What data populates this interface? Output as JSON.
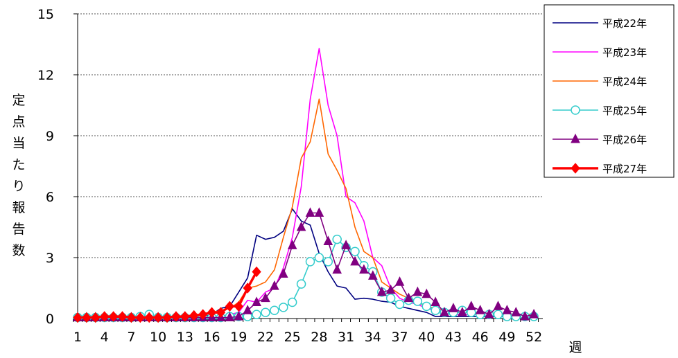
{
  "chart_data": {
    "type": "line",
    "ylabel": "定点当たり報告数",
    "xlabel": "週",
    "ylim": [
      0,
      15
    ],
    "xlim": [
      1,
      53
    ],
    "yticks": [
      0,
      3,
      6,
      9,
      12,
      15
    ],
    "xticks": [
      1,
      4,
      7,
      10,
      13,
      16,
      19,
      22,
      25,
      28,
      31,
      34,
      37,
      40,
      43,
      46,
      49,
      52
    ],
    "grid": "horizontal",
    "legend_position": "right",
    "series": [
      {
        "name": "平成22年",
        "color": "#000080",
        "marker": "none",
        "x": [
          1,
          2,
          3,
          4,
          5,
          6,
          7,
          8,
          9,
          10,
          11,
          12,
          13,
          14,
          15,
          16,
          17,
          18,
          19,
          20,
          21,
          22,
          23,
          24,
          25,
          26,
          27,
          28,
          29,
          30,
          31,
          32,
          33,
          34,
          35,
          36,
          37,
          38,
          39,
          40,
          41,
          42,
          43,
          44,
          45,
          46,
          47,
          48,
          49,
          50,
          51,
          52
        ],
        "values": [
          0.05,
          0.05,
          0.05,
          0.05,
          0.05,
          0.05,
          0.05,
          0.05,
          0.05,
          0.05,
          0.05,
          0.05,
          0.05,
          0.05,
          0.1,
          0.2,
          0.5,
          0.6,
          1.3,
          2.0,
          4.1,
          3.9,
          4.0,
          4.3,
          5.4,
          4.8,
          4.6,
          3.2,
          2.3,
          1.6,
          1.5,
          0.95,
          1.0,
          0.95,
          0.85,
          0.8,
          0.6,
          0.5,
          0.4,
          0.3,
          0.1,
          0.1,
          0.1,
          0.1,
          0.1,
          0.1,
          0.1,
          0.1,
          0.1,
          0.1,
          0.1,
          0.1
        ]
      },
      {
        "name": "平成23年",
        "color": "#ff00ff",
        "marker": "none",
        "x": [
          1,
          2,
          3,
          4,
          5,
          6,
          7,
          8,
          9,
          10,
          11,
          12,
          13,
          14,
          15,
          16,
          17,
          18,
          19,
          20,
          21,
          22,
          23,
          24,
          25,
          26,
          27,
          28,
          29,
          30,
          31,
          32,
          33,
          34,
          35,
          36,
          37,
          38,
          39,
          40,
          41,
          42,
          43,
          44,
          45,
          46,
          47,
          48,
          49,
          50,
          51,
          52
        ],
        "values": [
          0.05,
          0.05,
          0.05,
          0.05,
          0.05,
          0.05,
          0.05,
          0.05,
          0.05,
          0.05,
          0.05,
          0.05,
          0.05,
          0.05,
          0.05,
          0.1,
          0.1,
          0.2,
          0.3,
          0.9,
          0.8,
          1.3,
          1.5,
          2.5,
          4.0,
          6.5,
          10.8,
          13.3,
          10.5,
          9.0,
          6.0,
          5.7,
          4.8,
          3.0,
          2.6,
          1.5,
          1.0,
          0.8,
          0.7,
          0.5,
          0.4,
          0.3,
          0.2,
          0.2,
          0.2,
          0.2,
          0.2,
          0.2,
          0.2,
          0.2,
          0.2,
          0.2
        ]
      },
      {
        "name": "平成24年",
        "color": "#ff6600",
        "marker": "none",
        "x": [
          1,
          2,
          3,
          4,
          5,
          6,
          7,
          8,
          9,
          10,
          11,
          12,
          13,
          14,
          15,
          16,
          17,
          18,
          19,
          20,
          21,
          22,
          23,
          24,
          25,
          26,
          27,
          28,
          29,
          30,
          31,
          32,
          33,
          34,
          35,
          36,
          37,
          38,
          39,
          40,
          41,
          42,
          43,
          44,
          45,
          46,
          47,
          48,
          49,
          50,
          51,
          52
        ],
        "values": [
          0.05,
          0.05,
          0.05,
          0.05,
          0.05,
          0.05,
          0.05,
          0.05,
          0.05,
          0.05,
          0.05,
          0.05,
          0.05,
          0.1,
          0.2,
          0.3,
          0.4,
          0.5,
          0.8,
          1.5,
          1.6,
          1.8,
          2.4,
          4.0,
          5.5,
          7.9,
          8.7,
          10.8,
          8.1,
          7.3,
          6.4,
          4.5,
          3.3,
          3.0,
          1.8,
          1.5,
          1.2,
          1.0,
          0.8,
          0.6,
          0.5,
          0.4,
          0.3,
          0.3,
          0.3,
          0.2,
          0.2,
          0.2,
          0.2,
          0.2,
          0.2,
          0.2
        ]
      },
      {
        "name": "平成25年",
        "color": "#33cccc",
        "marker": "circle",
        "x": [
          1,
          2,
          3,
          4,
          5,
          6,
          7,
          8,
          9,
          10,
          11,
          12,
          13,
          14,
          15,
          16,
          17,
          18,
          19,
          20,
          21,
          22,
          23,
          24,
          25,
          26,
          27,
          28,
          29,
          30,
          31,
          32,
          33,
          34,
          35,
          36,
          37,
          38,
          39,
          40,
          41,
          42,
          43,
          44,
          45,
          46,
          47,
          48,
          49,
          50,
          51,
          52
        ],
        "values": [
          0.05,
          0.05,
          0.05,
          0.05,
          0.05,
          0.05,
          0.05,
          0.1,
          0.2,
          0.05,
          0.05,
          0.05,
          0.05,
          0.05,
          0.05,
          0.05,
          0.05,
          0.1,
          0.1,
          0.1,
          0.2,
          0.3,
          0.4,
          0.55,
          0.8,
          1.7,
          2.8,
          3.0,
          2.8,
          3.9,
          3.5,
          3.3,
          2.6,
          2.3,
          1.3,
          1.0,
          0.7,
          0.9,
          0.85,
          0.6,
          0.4,
          0.3,
          0.3,
          0.4,
          0.3,
          0.2,
          0.2,
          0.2,
          0.1,
          0.1,
          0.1,
          0.1
        ]
      },
      {
        "name": "平成26年",
        "color": "#800080",
        "marker": "triangle",
        "x": [
          1,
          2,
          3,
          4,
          5,
          6,
          7,
          8,
          9,
          10,
          11,
          12,
          13,
          14,
          15,
          16,
          17,
          18,
          19,
          20,
          21,
          22,
          23,
          24,
          25,
          26,
          27,
          28,
          29,
          30,
          31,
          32,
          33,
          34,
          35,
          36,
          37,
          38,
          39,
          40,
          41,
          42,
          43,
          44,
          45,
          46,
          47,
          48,
          49,
          50,
          51,
          52
        ],
        "values": [
          0.05,
          0.05,
          0.05,
          0.05,
          0.05,
          0.05,
          0.05,
          0.05,
          0.05,
          0.05,
          0.05,
          0.05,
          0.05,
          0.05,
          0.05,
          0.05,
          0.05,
          0.05,
          0.1,
          0.4,
          0.8,
          1.0,
          1.6,
          2.2,
          3.6,
          4.5,
          5.2,
          5.2,
          3.8,
          2.4,
          3.6,
          2.8,
          2.4,
          2.1,
          1.3,
          1.4,
          1.8,
          1.0,
          1.3,
          1.2,
          0.8,
          0.3,
          0.5,
          0.3,
          0.6,
          0.4,
          0.2,
          0.6,
          0.4,
          0.3,
          0.1,
          0.2
        ]
      },
      {
        "name": "平成27年",
        "color": "#ff0000",
        "marker": "diamond",
        "bold": true,
        "x": [
          1,
          2,
          3,
          4,
          5,
          6,
          7,
          8,
          9,
          10,
          11,
          12,
          13,
          14,
          15,
          16,
          17,
          18,
          19,
          20,
          21
        ],
        "values": [
          0.05,
          0.05,
          0.05,
          0.1,
          0.1,
          0.1,
          0.05,
          0.05,
          0.05,
          0.05,
          0.05,
          0.1,
          0.1,
          0.15,
          0.2,
          0.3,
          0.3,
          0.6,
          0.6,
          1.5,
          2.3
        ]
      }
    ]
  }
}
